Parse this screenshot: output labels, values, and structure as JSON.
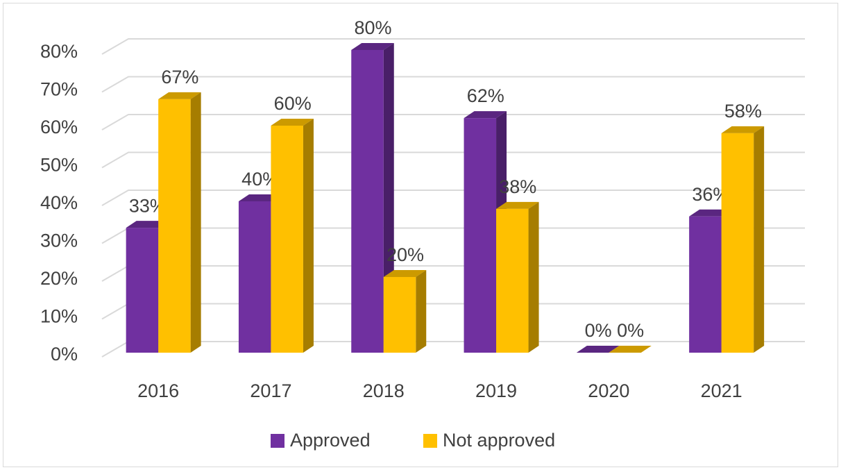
{
  "chart_data": {
    "type": "bar3d",
    "categories": [
      "2016",
      "2017",
      "2018",
      "2019",
      "2020",
      "2021"
    ],
    "series": [
      {
        "name": "Approved",
        "color": "#7030a0",
        "values": [
          33,
          40,
          80,
          62,
          0,
          36
        ],
        "value_labels": [
          "33%",
          "40%",
          "80%",
          "62%",
          "0%",
          "36%"
        ]
      },
      {
        "name": "Not approved",
        "color": "#ffc000",
        "values": [
          67,
          60,
          20,
          38,
          0,
          58
        ],
        "value_labels": [
          "67%",
          "60%",
          "20%",
          "38%",
          "0%",
          "58%"
        ]
      }
    ],
    "ylim": [
      0,
      80
    ],
    "yticks": [
      {
        "value": 0,
        "label": "0%"
      },
      {
        "value": 10,
        "label": "10%"
      },
      {
        "value": 20,
        "label": "20%"
      },
      {
        "value": 30,
        "label": "30%"
      },
      {
        "value": 40,
        "label": "40%"
      },
      {
        "value": 50,
        "label": "50%"
      },
      {
        "value": 60,
        "label": "60%"
      },
      {
        "value": 70,
        "label": "70%"
      },
      {
        "value": 80,
        "label": "80%"
      }
    ],
    "grid": true
  }
}
